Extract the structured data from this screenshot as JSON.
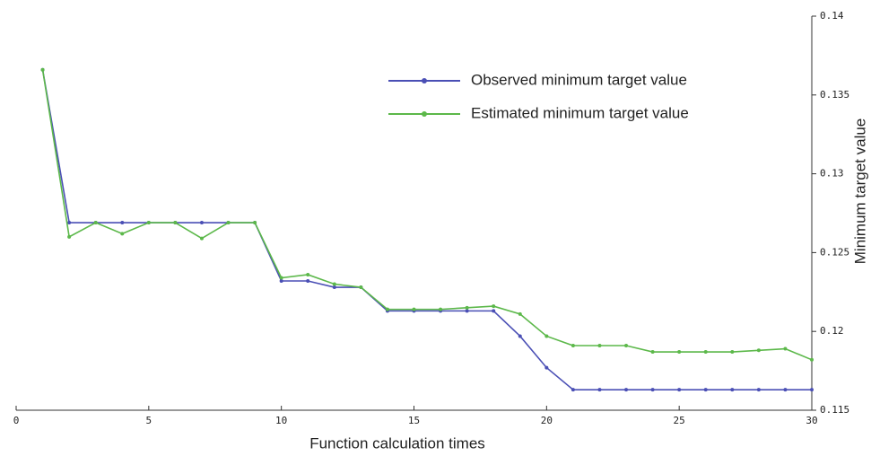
{
  "chart_data": {
    "type": "line",
    "x_label": "Function calculation times",
    "y_label": "Minimum target value",
    "x": [
      1,
      2,
      3,
      4,
      5,
      6,
      7,
      8,
      9,
      10,
      11,
      12,
      13,
      14,
      15,
      16,
      17,
      18,
      19,
      20,
      21,
      22,
      23,
      24,
      25,
      26,
      27,
      28,
      29,
      30
    ],
    "series": [
      {
        "name": "Observed minimum target value",
        "color": "#4a4fb5",
        "values": [
          0.1366,
          0.1269,
          0.1269,
          0.1269,
          0.1269,
          0.1269,
          0.1269,
          0.1269,
          0.1269,
          0.1232,
          0.1232,
          0.1228,
          0.1228,
          0.1213,
          0.1213,
          0.1213,
          0.1213,
          0.1213,
          0.1197,
          0.1177,
          0.1163,
          0.1163,
          0.1163,
          0.1163,
          0.1163,
          0.1163,
          0.1163,
          0.1163,
          0.1163,
          0.1163
        ]
      },
      {
        "name": "Estimated minimum target value",
        "color": "#5cb84a",
        "values": [
          0.1366,
          0.126,
          0.1269,
          0.1262,
          0.1269,
          0.1269,
          0.1259,
          0.1269,
          0.1269,
          0.1234,
          0.1236,
          0.123,
          0.1228,
          0.1214,
          0.1214,
          0.1214,
          0.1215,
          0.1216,
          0.1211,
          0.1197,
          0.1191,
          0.1191,
          0.1191,
          0.1187,
          0.1187,
          0.1187,
          0.1187,
          0.1188,
          0.1189,
          0.1182
        ]
      }
    ],
    "xlim": [
      0,
      30
    ],
    "xticks": [
      0,
      5,
      10,
      15,
      20,
      25,
      30
    ],
    "ylim": [
      0.115,
      0.14
    ],
    "yticks": [
      0.115,
      0.12,
      0.125,
      0.13,
      0.135,
      0.14
    ],
    "y_axis_side": "right",
    "grid": false
  }
}
